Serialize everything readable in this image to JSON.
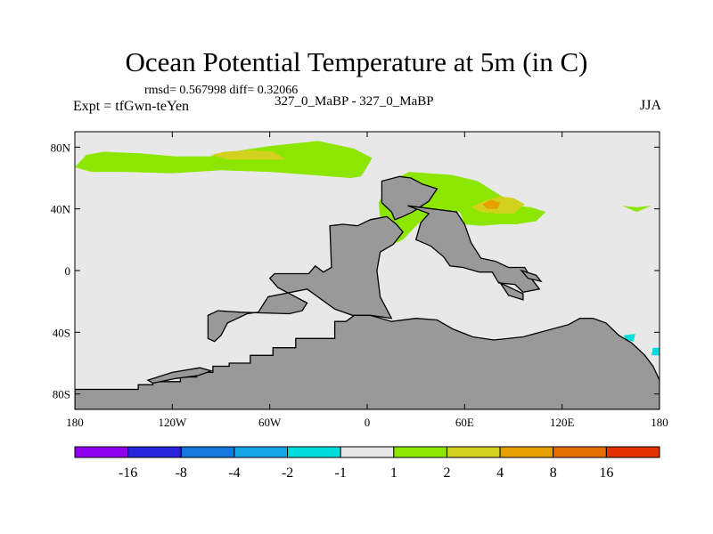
{
  "title": "Ocean Potential Temperature at 5m (in C)",
  "stats_line": "rmsd= 0.567998 diff= 0.32066",
  "left_label": "Expt = tfGwn-teYen",
  "center_label": "327_0_MaBP - 327_0_MaBP",
  "right_label": "JJA",
  "chart_data": {
    "type": "heatmap",
    "title": "Ocean Potential Temperature at 5m (in C)",
    "units": "C",
    "season": "JJA",
    "xlim": [
      -180,
      180
    ],
    "ylim": [
      -90,
      90
    ],
    "x_ticks": [
      {
        "value": -180,
        "label": "180"
      },
      {
        "value": -120,
        "label": "120W"
      },
      {
        "value": -60,
        "label": "60W"
      },
      {
        "value": 0,
        "label": "0"
      },
      {
        "value": 60,
        "label": "60E"
      },
      {
        "value": 120,
        "label": "120E"
      },
      {
        "value": 180,
        "label": "180"
      }
    ],
    "y_ticks": [
      {
        "value": 80,
        "label": "80N"
      },
      {
        "value": 40,
        "label": "40N"
      },
      {
        "value": 0,
        "label": "0"
      },
      {
        "value": -40,
        "label": "40S"
      },
      {
        "value": -80,
        "label": "80S"
      }
    ],
    "background_color": "#e8e8e8",
    "land_color": "#999999",
    "land_polygons": [
      [
        [
          -180,
          -90
        ],
        [
          -180,
          -77
        ],
        [
          -141,
          -77
        ],
        [
          -141,
          -74
        ],
        [
          -132,
          -74
        ],
        [
          -132,
          -72
        ],
        [
          -115,
          -72
        ],
        [
          -115,
          -69
        ],
        [
          -105,
          -69
        ],
        [
          -105,
          -66
        ],
        [
          -95,
          -66
        ],
        [
          -95,
          -62
        ],
        [
          -85,
          -62
        ],
        [
          -85,
          -60
        ],
        [
          -72,
          -60
        ],
        [
          -72,
          -55
        ],
        [
          -58,
          -55
        ],
        [
          -58,
          -50
        ],
        [
          -44,
          -50
        ],
        [
          -44,
          -44
        ],
        [
          -20,
          -44
        ],
        [
          -20,
          -33
        ],
        [
          -13,
          -33
        ],
        [
          -8,
          -29
        ],
        [
          2,
          -29
        ],
        [
          15,
          -33
        ],
        [
          30,
          -31
        ],
        [
          43,
          -32
        ],
        [
          53,
          -38
        ],
        [
          65,
          -43
        ],
        [
          78,
          -45
        ],
        [
          96,
          -43
        ],
        [
          110,
          -39
        ],
        [
          124,
          -35
        ],
        [
          131,
          -31
        ],
        [
          139,
          -31
        ],
        [
          147,
          -34
        ],
        [
          155,
          -42
        ],
        [
          163,
          -47
        ],
        [
          171,
          -55
        ],
        [
          176,
          -62
        ],
        [
          180,
          -71
        ],
        [
          180,
          -90
        ]
      ],
      [
        [
          -135,
          -71
        ],
        [
          -120,
          -66
        ],
        [
          -103,
          -63
        ],
        [
          -96,
          -65
        ],
        [
          -104,
          -68
        ],
        [
          -118,
          -70
        ],
        [
          -132,
          -73
        ]
      ],
      [
        [
          -98,
          -44
        ],
        [
          -98,
          -29
        ],
        [
          -92,
          -26
        ],
        [
          -78,
          -27
        ],
        [
          -48,
          -28
        ],
        [
          -40,
          -26
        ],
        [
          -37,
          -21
        ],
        [
          -55,
          -11
        ],
        [
          -60,
          -5
        ],
        [
          -57,
          -2
        ],
        [
          -36,
          -2
        ],
        [
          -32,
          3
        ],
        [
          -27,
          -1
        ],
        [
          -22,
          2
        ],
        [
          -23,
          29
        ],
        [
          -15,
          30
        ],
        [
          -6,
          29
        ],
        [
          2,
          33
        ],
        [
          12,
          35
        ],
        [
          18,
          30
        ],
        [
          22,
          25
        ],
        [
          16,
          17
        ],
        [
          8,
          12
        ],
        [
          6,
          0
        ],
        [
          8,
          -17
        ],
        [
          15,
          -31
        ],
        [
          2,
          -29
        ],
        [
          -9,
          -29
        ],
        [
          -20,
          -25
        ],
        [
          -37,
          -12
        ],
        [
          -61,
          -17
        ],
        [
          -67,
          -27
        ],
        [
          -74,
          -28
        ],
        [
          -86,
          -34
        ],
        [
          -90,
          -42
        ],
        [
          -94,
          -46
        ]
      ],
      [
        [
          9,
          44
        ],
        [
          9,
          58
        ],
        [
          20,
          61
        ],
        [
          27,
          60
        ],
        [
          34,
          56
        ],
        [
          43,
          53
        ],
        [
          38,
          45
        ],
        [
          28,
          38
        ],
        [
          22,
          35
        ],
        [
          17,
          33
        ],
        [
          15,
          38
        ]
      ],
      [
        [
          25,
          42
        ],
        [
          55,
          38
        ],
        [
          60,
          30
        ],
        [
          64,
          18
        ],
        [
          70,
          8
        ],
        [
          79,
          6
        ],
        [
          87,
          2
        ],
        [
          97,
          2
        ],
        [
          101,
          -5
        ],
        [
          106,
          -12
        ],
        [
          96,
          -14
        ],
        [
          91,
          -9
        ],
        [
          81,
          -8
        ],
        [
          77,
          -1
        ],
        [
          69,
          -1
        ],
        [
          59,
          2
        ],
        [
          51,
          3
        ],
        [
          47,
          9
        ],
        [
          39,
          16
        ],
        [
          30,
          20
        ],
        [
          33,
          31
        ],
        [
          38,
          37
        ]
      ],
      [
        [
          82,
          -8
        ],
        [
          96,
          -15
        ],
        [
          96,
          -19
        ],
        [
          87,
          -16
        ]
      ],
      [
        [
          95,
          0
        ],
        [
          104,
          -3
        ],
        [
          107,
          -7
        ],
        [
          99,
          -5
        ]
      ]
    ],
    "contour_fill_patches": [
      {
        "range": "1 to 2",
        "color": "#8ce600",
        "outline": [
          [
            -180,
            67
          ],
          [
            -173,
            75
          ],
          [
            -162,
            77
          ],
          [
            -140,
            76
          ],
          [
            -118,
            74
          ],
          [
            -97,
            74
          ],
          [
            -77,
            78
          ],
          [
            -58,
            81
          ],
          [
            -30,
            84
          ],
          [
            -8,
            79
          ],
          [
            3,
            73
          ],
          [
            -2,
            64
          ],
          [
            -4,
            61
          ],
          [
            -10,
            60
          ],
          [
            -35,
            62
          ],
          [
            -60,
            64
          ],
          [
            -90,
            65
          ],
          [
            -120,
            63
          ],
          [
            -150,
            64
          ],
          [
            -170,
            64
          ]
        ]
      },
      {
        "range": "1 to 2",
        "color": "#8ce600",
        "outline": [
          [
            7,
            44
          ],
          [
            14,
            58
          ],
          [
            26,
            64
          ],
          [
            38,
            63
          ],
          [
            52,
            62
          ],
          [
            68,
            58
          ],
          [
            80,
            50
          ],
          [
            93,
            42
          ],
          [
            101,
            41
          ],
          [
            110,
            38
          ],
          [
            104,
            32
          ],
          [
            92,
            30
          ],
          [
            82,
            30
          ],
          [
            70,
            29
          ],
          [
            60,
            30
          ],
          [
            57,
            38
          ],
          [
            44,
            37
          ],
          [
            32,
            31
          ],
          [
            22,
            20
          ],
          [
            16,
            17
          ],
          [
            13,
            29
          ],
          [
            8,
            34
          ]
        ]
      },
      {
        "range": "1 to 2",
        "color": "#8ce600",
        "outline": [
          [
            -63,
            -60
          ],
          [
            -55,
            -56
          ],
          [
            -42,
            -51
          ],
          [
            -40,
            -53
          ],
          [
            -40,
            -60
          ],
          [
            -54,
            -63
          ]
        ]
      },
      {
        "range": "1 to 2",
        "color": "#8ce600",
        "outline": [
          [
            157,
            42
          ],
          [
            166,
            41
          ],
          [
            175,
            42
          ],
          [
            166,
            38
          ]
        ]
      },
      {
        "range": "2 to 4",
        "color": "#d2d21e",
        "outline": [
          [
            -96,
            75
          ],
          [
            -88,
            77
          ],
          [
            -72,
            78
          ],
          [
            -58,
            77
          ],
          [
            -50,
            72
          ],
          [
            -70,
            72
          ],
          [
            -86,
            72
          ]
        ]
      },
      {
        "range": "2 to 4",
        "color": "#d2d21e",
        "outline": [
          [
            64,
            41
          ],
          [
            72,
            45
          ],
          [
            82,
            48
          ],
          [
            90,
            47
          ],
          [
            97,
            43
          ],
          [
            90,
            37
          ],
          [
            80,
            37
          ],
          [
            70,
            38
          ]
        ]
      },
      {
        "range": "4 to 8",
        "color": "#e6a000",
        "outline": [
          [
            71,
            43
          ],
          [
            76,
            46
          ],
          [
            82,
            44
          ],
          [
            80,
            40
          ],
          [
            74,
            40
          ]
        ]
      },
      {
        "range": "-2 to -1",
        "color": "#00dcdc",
        "outline": [
          [
            158,
            -42
          ],
          [
            165,
            -41
          ],
          [
            164,
            -46
          ],
          [
            159,
            -45
          ]
        ]
      },
      {
        "range": "-2 to -1",
        "color": "#00dcdc",
        "outline": [
          [
            176,
            -50
          ],
          [
            180,
            -50
          ],
          [
            180,
            -55
          ],
          [
            175,
            -55
          ]
        ]
      }
    ],
    "colorbar": {
      "type": "contour_fill",
      "colors": [
        "#8f00f0",
        "#2824dc",
        "#1478dc",
        "#14a6e6",
        "#00dcdc",
        "#e8e8e8",
        "#8ce600",
        "#d2d21e",
        "#e6a000",
        "#e66e00",
        "#e13200"
      ],
      "labels": [
        "-16",
        "-8",
        "-4",
        "-2",
        "-1",
        "1",
        "2",
        "4",
        "8",
        "16"
      ]
    }
  }
}
